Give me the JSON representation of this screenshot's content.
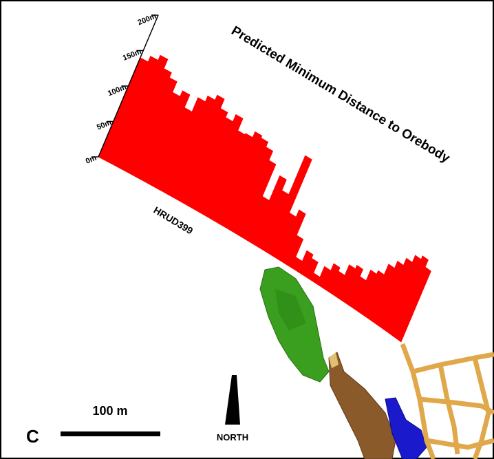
{
  "chart_data": {
    "type": "bar",
    "title": "Predicted Minimum Distance to Orebody",
    "hole_label": "HRUD399",
    "panel_label": "C",
    "scale_label": "100 m",
    "north_label": "NORTH",
    "color": "#ff0000",
    "values": [
      140,
      148,
      155,
      142,
      135,
      120,
      128,
      110,
      130,
      138,
      145,
      132,
      125,
      135,
      118,
      120,
      128,
      125,
      118,
      105,
      60,
      95,
      80,
      135,
      60,
      70,
      40,
      15,
      30,
      25,
      10,
      25,
      35,
      30,
      45,
      50,
      40,
      55,
      60,
      75,
      85,
      95,
      105,
      110,
      100
    ],
    "ylim": [
      0,
      200
    ],
    "yticks": [
      {
        "value": 0,
        "label": "0m"
      },
      {
        "value": 50,
        "label": "50m"
      },
      {
        "value": 100,
        "label": "100m"
      },
      {
        "value": 150,
        "label": "150m"
      },
      {
        "value": 200,
        "label": "200m"
      }
    ]
  }
}
